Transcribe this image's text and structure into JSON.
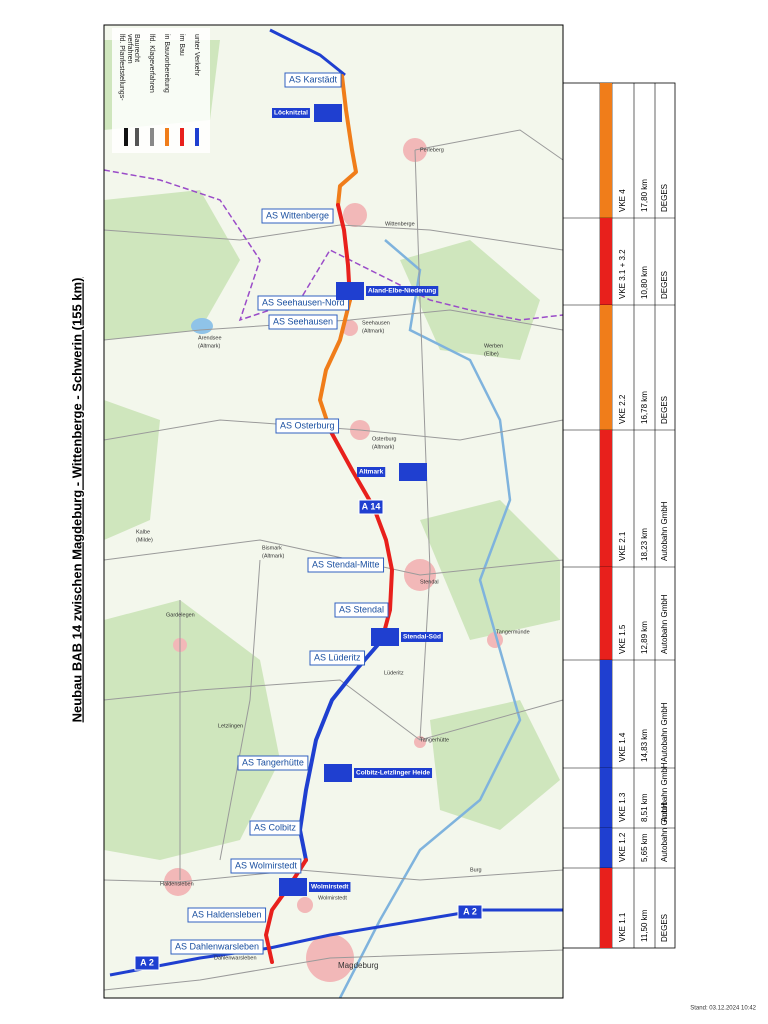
{
  "title": "Neubau BAB 14 zwischen Magdeburg - Wittenberge - Schwerin (155 km)",
  "legend": [
    {
      "label": "lfd. Planfeststellungs-",
      "label2": "verfahren",
      "color": "#111111"
    },
    {
      "label": "Baurecht",
      "color": "#555555"
    },
    {
      "label": "lfd. Klageverfahren",
      "color": "#888888"
    },
    {
      "label": "in Bauvorbereitung",
      "color": "#f07d1a"
    },
    {
      "label": "im Bau",
      "color": "#e8201c"
    },
    {
      "label": "unter Verkehr",
      "color": "#1f3fd0"
    }
  ],
  "junctions": [
    "AS Karstädt",
    "AS Wittenberge",
    "AS Seehausen-Nord",
    "AS Seehausen",
    "AS Osterburg",
    "AS Stendal-Mitte",
    "AS Stendal",
    "AS Lüderitz",
    "AS Tangerhütte",
    "AS Colbitz",
    "AS Wolmirstedt",
    "AS Haldensleben",
    "AS Dahlenwarsleben"
  ],
  "rest_areas": [
    "Löcknitztal",
    "Aland-Elbe-Niederung",
    "Altmark",
    "Stendal-Süd",
    "Colbitz-Letzlinger Heide",
    "Wolmirstedt"
  ],
  "shields": [
    "A 14",
    "A 2",
    "A 2"
  ],
  "towns": [
    "Perleberg",
    "Wittenberge",
    "Seehausen",
    "(Altmark)",
    "Arendsee",
    "(Altmark)",
    "Werben",
    "(Elbe)",
    "Osterburg",
    "(Altmark)",
    "Bismark",
    "(Altmark)",
    "Kalbe",
    "(Milde)",
    "Stendal",
    "Tangermünde",
    "Gardelegen",
    "Letzlingen",
    "Lüderitz",
    "Tangerhütte",
    "Haldensleben",
    "Wolmirstedt",
    "Magdeburg",
    "Dahlenwarsleben",
    "Burg"
  ],
  "table": [
    {
      "name": "VKE 4",
      "length": "17,80 km",
      "company": "DEGES",
      "color": "#f07d1a"
    },
    {
      "name": "VKE 3.1 + 3.2",
      "length": "10,80 km",
      "company": "DEGES",
      "color": "#e8201c"
    },
    {
      "name": "VKE 2.2",
      "length": "16,78 km",
      "company": "DEGES",
      "color": "#f07d1a"
    },
    {
      "name": "VKE 2.1",
      "length": "18,23 km",
      "company": "Autobahn GmbH",
      "color": "#e8201c"
    },
    {
      "name": "VKE 1.5",
      "length": "12,89 km",
      "company": "Autobahn GmbH",
      "color": "#e8201c"
    },
    {
      "name": "VKE 1.4",
      "length": "14,83 km",
      "company": "Autobahn GmbH",
      "color": "#1f3fd0"
    },
    {
      "name": "VKE 1.3",
      "length": "8,51 km",
      "company": "Autobahn GmbH",
      "color": "#1f3fd0"
    },
    {
      "name": "VKE 1.2",
      "length": "5,65 km",
      "company": "Autobahn GmbH",
      "color": "#1f3fd0"
    },
    {
      "name": "VKE 1.1",
      "length": "11,50 km",
      "company": "DEGES",
      "color": "#e8201c"
    }
  ],
  "stand": "Stand: 03.12.2024 10:42"
}
